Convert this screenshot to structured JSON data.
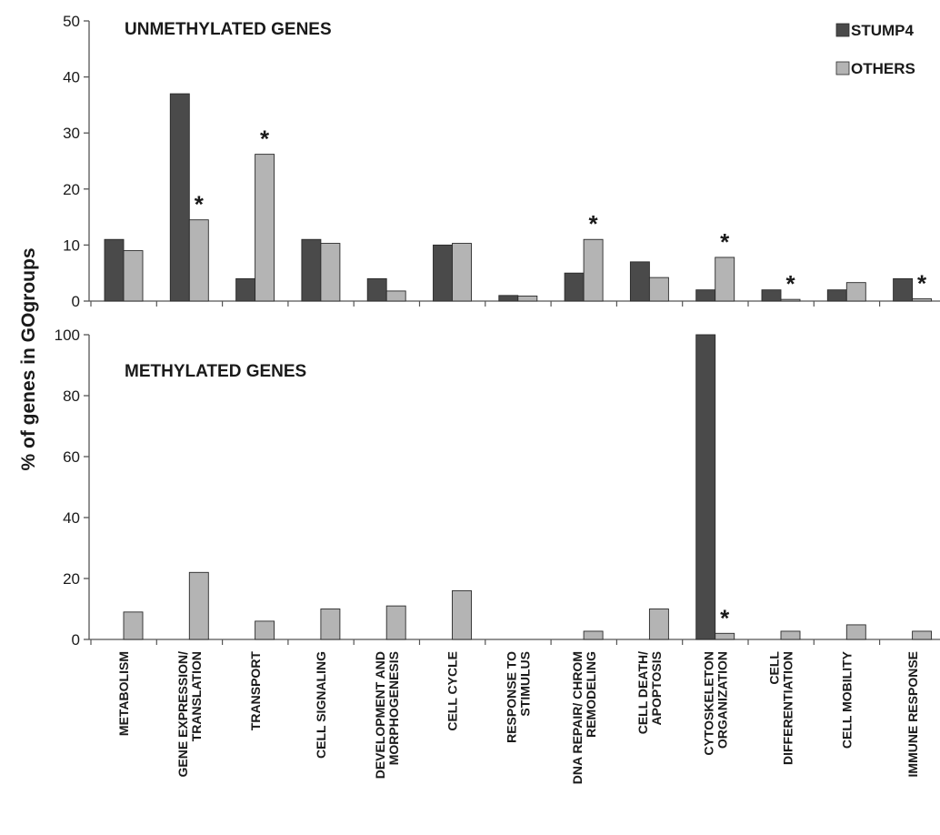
{
  "chart_data": {
    "type": "bar",
    "ylabel": "% of genes in GOgroups",
    "legend": [
      {
        "name": "STUMP4",
        "color": "#4a4a4a"
      },
      {
        "name": "OTHERS",
        "color": "#b4b4b4"
      }
    ],
    "legend_position": "top-right",
    "grid": false,
    "categories": [
      [
        "METABOLISM"
      ],
      [
        "GENE EXPRESSION/",
        "TRANSLATION"
      ],
      [
        "TRANSPORT"
      ],
      [
        "CELL SIGNALING"
      ],
      [
        "DEVELOPMENT AND",
        "MORPHOGENESIS"
      ],
      [
        "CELL CYCLE"
      ],
      [
        "RESPONSE TO",
        "STIMULUS"
      ],
      [
        "DNA REPAIR/ CHROM",
        "REMODELING"
      ],
      [
        "CELL DEATH/",
        "APOPTOSIS"
      ],
      [
        "CYTOSKELETON",
        "ORGANIZATION"
      ],
      [
        "CELL",
        "DIFFERENTIATION"
      ],
      [
        "CELL MOBILITY"
      ],
      [
        "IMMUNE RESPONSE"
      ]
    ],
    "panels": [
      {
        "title": "UNMETHYLATED GENES",
        "ylim": [
          0,
          50
        ],
        "yticks": [
          "0",
          "10",
          "20",
          "30",
          "40",
          "50"
        ],
        "series": [
          {
            "name": "STUMP4",
            "values": [
              11,
              37,
              4,
              11,
              4,
              10,
              1,
              5,
              7,
              2,
              2,
              2,
              4
            ]
          },
          {
            "name": "OTHERS",
            "values": [
              9,
              14.5,
              26.2,
              10.3,
              1.8,
              10.3,
              0.9,
              11,
              4.2,
              7.8,
              0.3,
              3.3,
              0.4
            ]
          }
        ],
        "significant": [
          "",
          "*",
          "*",
          "",
          "",
          "",
          "",
          "*",
          "",
          "*",
          "*",
          "",
          "*"
        ]
      },
      {
        "title": "METHYLATED GENES",
        "ylim": [
          0,
          100
        ],
        "yticks": [
          "0",
          "20",
          "40",
          "60",
          "80",
          "100"
        ],
        "series": [
          {
            "name": "STUMP4",
            "values": [
              0,
              0,
              0,
              0,
              0,
              0,
              0,
              0,
              0,
              100,
              0,
              0,
              0
            ]
          },
          {
            "name": "OTHERS",
            "values": [
              9,
              22,
              6,
              10,
              11,
              16,
              0,
              2.7,
              10,
              2,
              2.7,
              4.8,
              2.7
            ]
          }
        ],
        "significant": [
          "",
          "",
          "",
          "",
          "",
          "",
          "",
          "",
          "",
          "*",
          "",
          "",
          ""
        ]
      }
    ]
  }
}
